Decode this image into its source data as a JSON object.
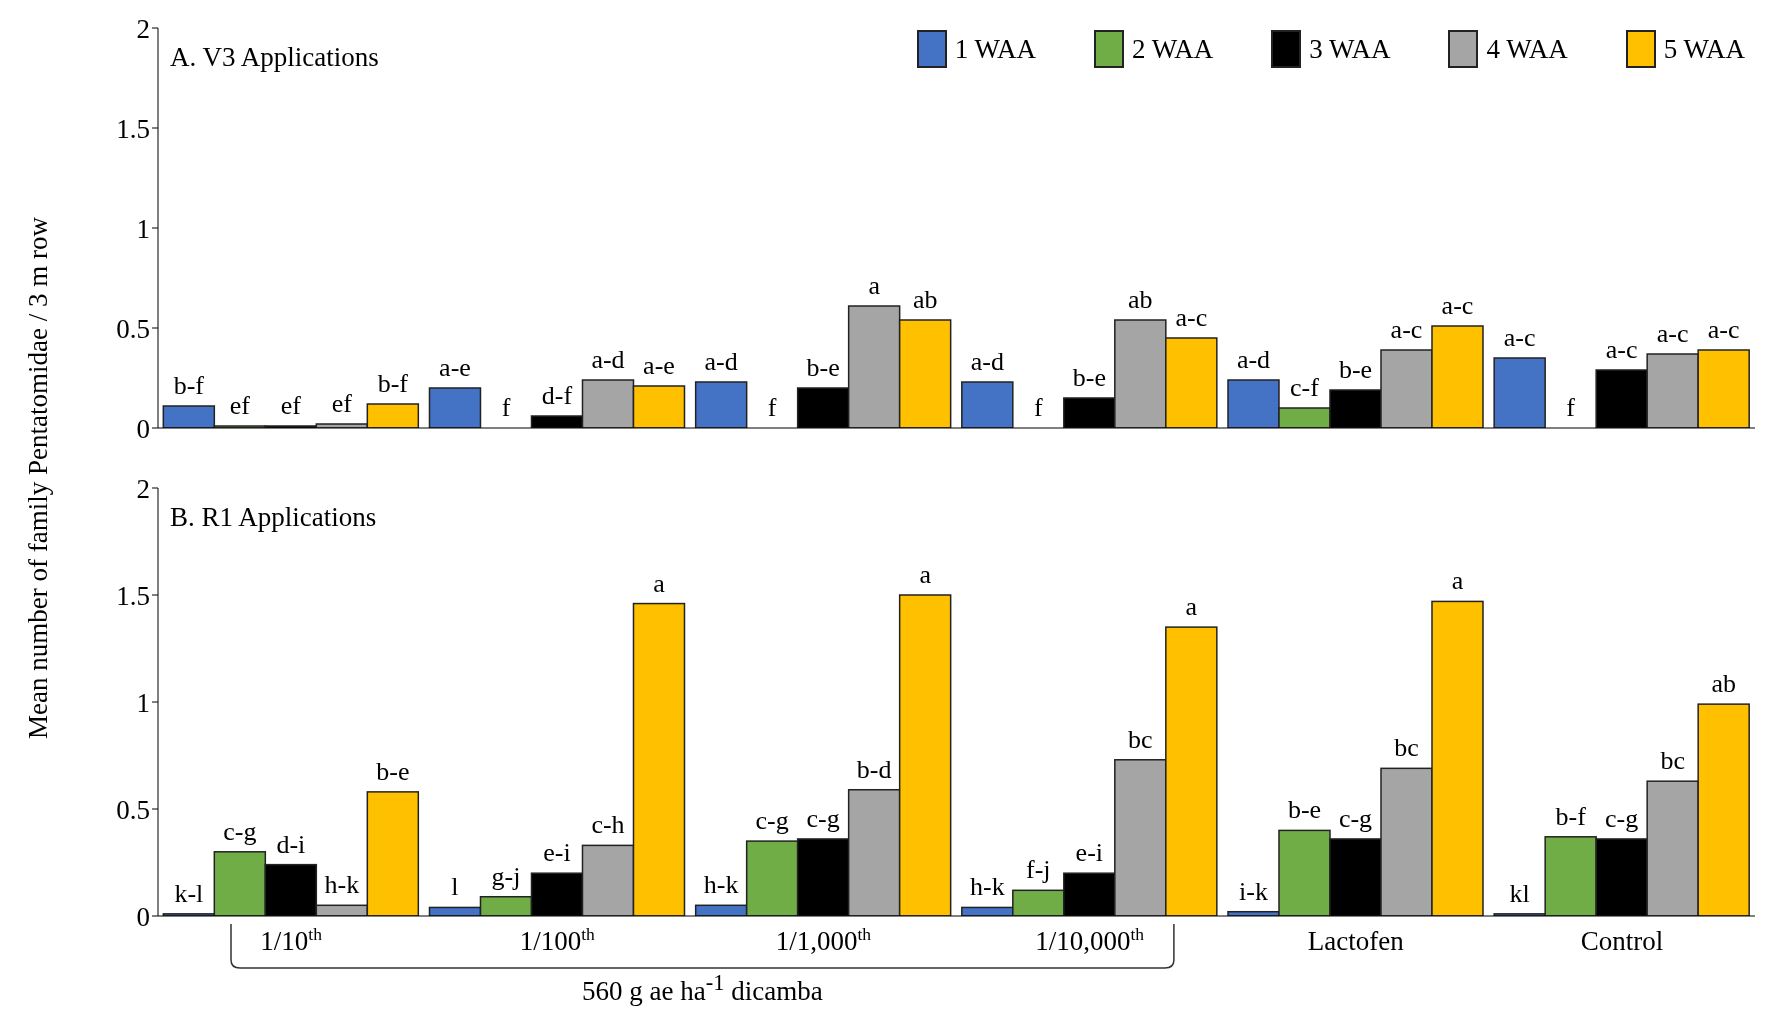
{
  "chart_data": [
    {
      "type": "bar",
      "title": "A. V3 Applications",
      "ylabel": "Mean number of family Pentatomidae  / 3 m row",
      "categories": [
        null,
        null,
        null,
        null,
        null,
        null
      ],
      "tick_labels": "y",
      "ylim": [
        0,
        2
      ],
      "yticks": [
        0,
        0.5,
        1,
        1.5,
        2
      ],
      "grid": false,
      "legend": "top right",
      "series": [
        {
          "name": "1 WAA",
          "color": "#4472c4",
          "values": [
            0.11,
            0.2,
            0.23,
            0.23,
            0.24,
            0.35
          ],
          "value_labels": [
            "b-f",
            "a-e",
            "a-d",
            "a-d",
            "a-d",
            "a-c"
          ]
        },
        {
          "name": "2 WAA",
          "color": "#70ad47",
          "values": [
            0.01,
            0,
            0,
            0,
            0.1,
            0
          ],
          "value_labels": [
            "ef",
            "f",
            "f",
            "f",
            "c-f",
            "f"
          ]
        },
        {
          "name": "3 WAA",
          "color": "#000000",
          "values": [
            0.01,
            0.06,
            0.2,
            0.15,
            0.19,
            0.29
          ],
          "value_labels": [
            "ef",
            "d-f",
            "b-e",
            "b-e",
            "b-e",
            "a-c"
          ]
        },
        {
          "name": "4 WAA",
          "color": "#a5a5a5",
          "values": [
            0.02,
            0.24,
            0.61,
            0.54,
            0.39,
            0.37
          ],
          "value_labels": [
            "ef",
            "a-d",
            "a",
            "ab",
            "a-c",
            "a-c"
          ]
        },
        {
          "name": "5 WAA",
          "color": "#ffc000",
          "values": [
            0.12,
            0.21,
            0.54,
            0.45,
            0.51,
            0.39
          ],
          "value_labels": [
            "b-f",
            "a-e",
            "ab",
            "a-c",
            "a-c",
            "a-c"
          ]
        }
      ]
    },
    {
      "type": "bar",
      "title": "B. R1 Applications",
      "categories": [
        "1/10$^{th}$",
        "1/100$^{th}$",
        "1/1,000$^{th}$",
        "1/10,000$^{th}$",
        "Lactofen",
        "Control"
      ],
      "ylim": [
        0,
        2
      ],
      "yticks": [
        0,
        0.5,
        1,
        1.5,
        2
      ],
      "grid": false,
      "legend": false,
      "annotations": [
        "560 g ae ha$^{-1}$ dicamba"
      ],
      "series": [
        {
          "color": "#4472c4",
          "values": [
            0.01,
            0.04,
            0.05,
            0.04,
            0.02,
            0.01
          ],
          "value_labels": [
            "k-l",
            "l",
            "h-k",
            "h-k",
            "i-k",
            "kl"
          ]
        },
        {
          "color": "#70ad47",
          "values": [
            0.3,
            0.09,
            0.35,
            0.12,
            0.4,
            0.37
          ],
          "value_labels": [
            "c-g",
            "g-j",
            "c-g",
            "f-j",
            "b-e",
            "b-f"
          ]
        },
        {
          "color": "#000000",
          "values": [
            0.24,
            0.2,
            0.36,
            0.2,
            0.36,
            0.36
          ],
          "value_labels": [
            "d-i",
            "e-i",
            "c-g",
            "e-i",
            "c-g",
            "c-g"
          ]
        },
        {
          "color": "#a5a5a5",
          "values": [
            0.05,
            0.33,
            0.59,
            0.73,
            0.69,
            0.63
          ],
          "value_labels": [
            "h-k",
            "c-h",
            "b-d",
            "bc",
            "bc",
            "bc"
          ]
        },
        {
          "color": "#ffc000",
          "values": [
            0.58,
            1.46,
            1.5,
            1.35,
            1.47,
            0.99
          ],
          "value_labels": [
            "b-e",
            "a",
            "a",
            "a",
            "a",
            "ab"
          ]
        }
      ]
    }
  ]
}
